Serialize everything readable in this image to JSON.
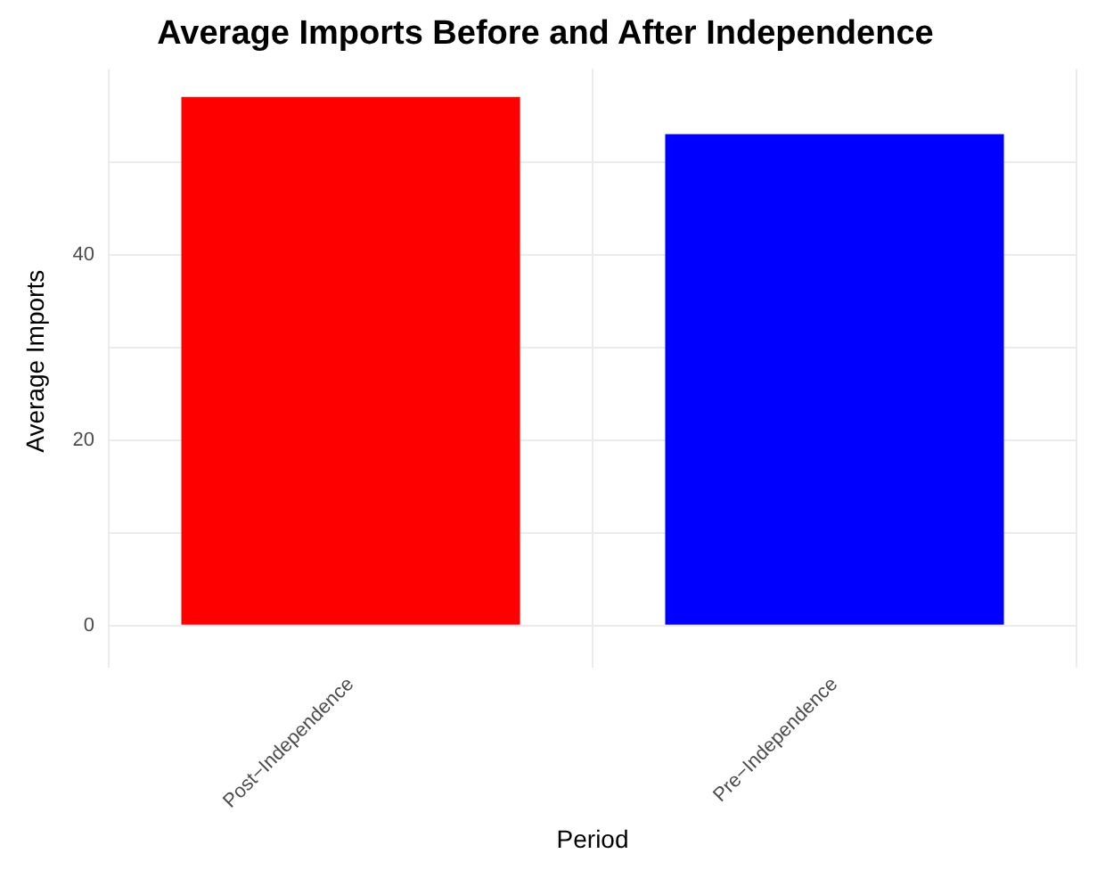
{
  "chart_data": {
    "type": "bar",
    "title": "Average Imports Before and After Independence",
    "xlabel": "Period",
    "ylabel": "Average Imports",
    "categories": [
      "Post−Independence",
      "Pre−Independence"
    ],
    "values": [
      57,
      53
    ],
    "colors": [
      "#ff0000",
      "#0000ff"
    ],
    "ylim": [
      -3,
      60
    ],
    "yticks": [
      0,
      {
        "value": 10,
        "label": null
      },
      20,
      {
        "value": 30,
        "label": null
      },
      40,
      {
        "value": 50,
        "label": null
      }
    ],
    "grid": true
  }
}
